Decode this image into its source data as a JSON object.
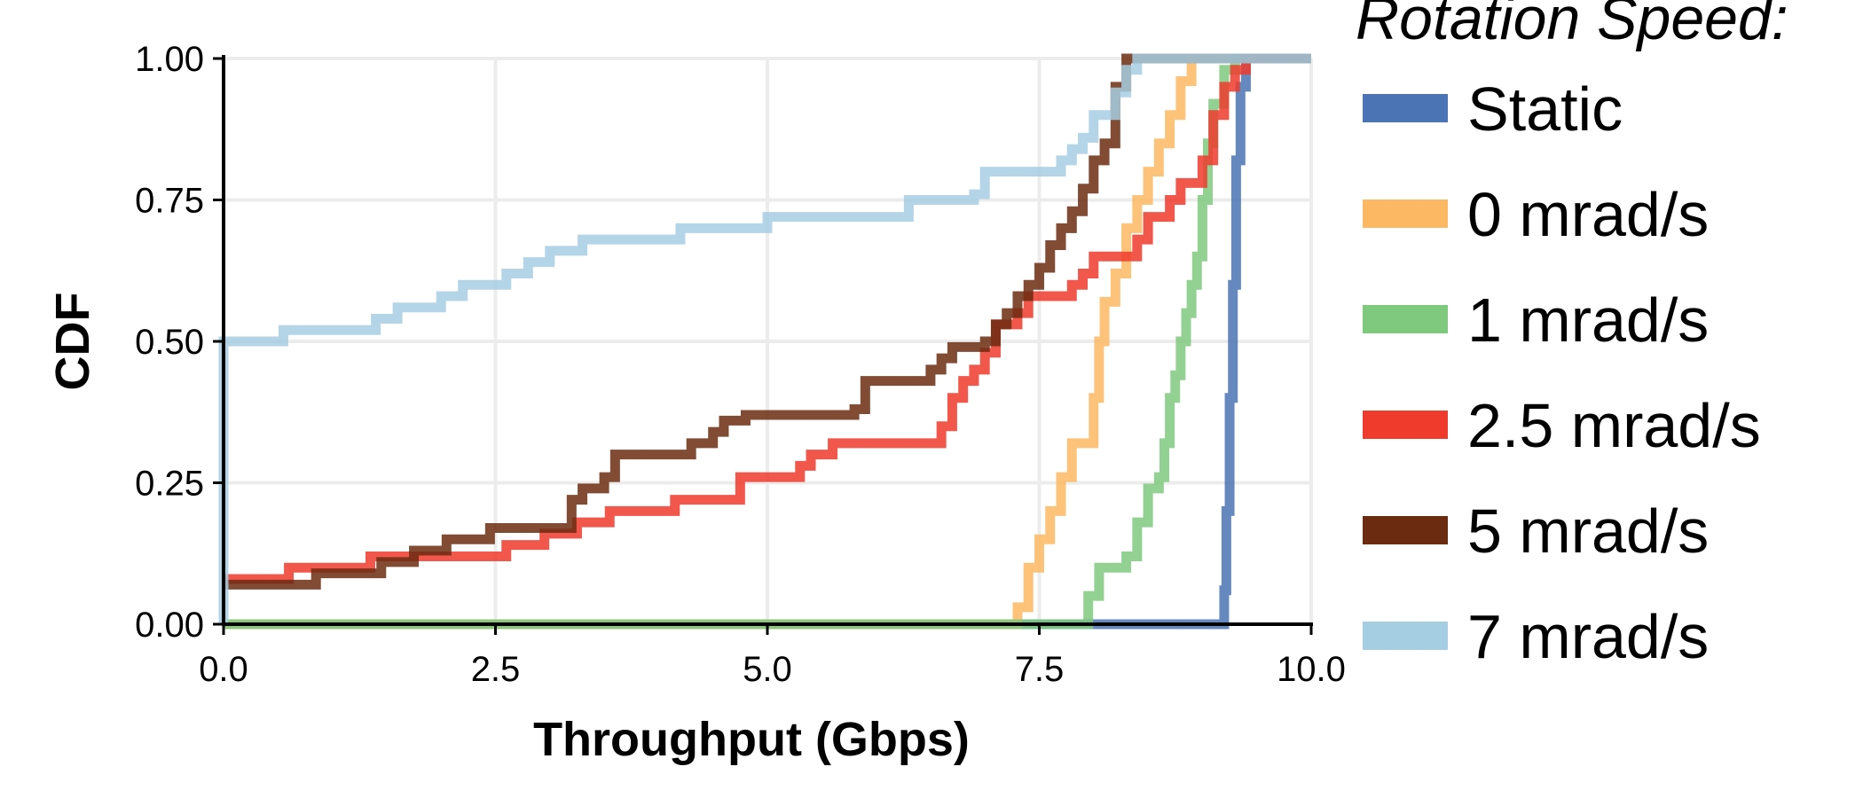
{
  "chart_data": {
    "type": "line",
    "xlabel": "Throughput (Gbps)",
    "ylabel": "CDF",
    "xlim": [
      0,
      10
    ],
    "ylim": [
      0,
      1
    ],
    "x_ticks": [
      "0.0",
      "2.5",
      "5.0",
      "7.5",
      "10.0"
    ],
    "y_ticks": [
      "0.00",
      "0.25",
      "0.50",
      "0.75",
      "1.00"
    ],
    "grid": true,
    "legend_title": "Rotation Speed:",
    "legend_position": "right",
    "series": [
      {
        "name": "Static",
        "color": "#4a74b4",
        "points": [
          [
            0,
            0
          ],
          [
            9.15,
            0
          ],
          [
            9.2,
            0.06
          ],
          [
            9.22,
            0.2
          ],
          [
            9.25,
            0.4
          ],
          [
            9.28,
            0.6
          ],
          [
            9.31,
            0.82
          ],
          [
            9.35,
            0.95
          ],
          [
            9.4,
            1
          ],
          [
            10,
            1
          ]
        ]
      },
      {
        "name": "0 mrad/s",
        "color": "#fdb863",
        "points": [
          [
            0,
            0
          ],
          [
            7.2,
            0
          ],
          [
            7.3,
            0.03
          ],
          [
            7.4,
            0.1
          ],
          [
            7.5,
            0.15
          ],
          [
            7.6,
            0.2
          ],
          [
            7.7,
            0.26
          ],
          [
            7.8,
            0.32
          ],
          [
            7.95,
            0.32
          ],
          [
            8.0,
            0.4
          ],
          [
            8.05,
            0.5
          ],
          [
            8.1,
            0.57
          ],
          [
            8.2,
            0.62
          ],
          [
            8.3,
            0.7
          ],
          [
            8.4,
            0.75
          ],
          [
            8.5,
            0.8
          ],
          [
            8.6,
            0.85
          ],
          [
            8.7,
            0.9
          ],
          [
            8.8,
            0.96
          ],
          [
            8.9,
            1
          ],
          [
            10,
            1
          ]
        ]
      },
      {
        "name": "1 mrad/s",
        "color": "#7fc97f",
        "points": [
          [
            0,
            0
          ],
          [
            7.85,
            0
          ],
          [
            7.95,
            0.05
          ],
          [
            8.05,
            0.1
          ],
          [
            8.3,
            0.12
          ],
          [
            8.4,
            0.18
          ],
          [
            8.5,
            0.24
          ],
          [
            8.6,
            0.26
          ],
          [
            8.65,
            0.32
          ],
          [
            8.7,
            0.4
          ],
          [
            8.75,
            0.44
          ],
          [
            8.8,
            0.5
          ],
          [
            8.85,
            0.55
          ],
          [
            8.9,
            0.6
          ],
          [
            8.95,
            0.65
          ],
          [
            9.0,
            0.75
          ],
          [
            9.05,
            0.85
          ],
          [
            9.1,
            0.92
          ],
          [
            9.2,
            0.98
          ],
          [
            9.3,
            1
          ],
          [
            10,
            1
          ]
        ]
      },
      {
        "name": "2.5 mrad/s",
        "color": "#ef3b2c",
        "points": [
          [
            0,
            0.08
          ],
          [
            0.5,
            0.08
          ],
          [
            0.6,
            0.1
          ],
          [
            1.3,
            0.1
          ],
          [
            1.35,
            0.12
          ],
          [
            2.5,
            0.12
          ],
          [
            2.6,
            0.14
          ],
          [
            2.9,
            0.14
          ],
          [
            2.95,
            0.16
          ],
          [
            3.2,
            0.16
          ],
          [
            3.25,
            0.18
          ],
          [
            3.5,
            0.18
          ],
          [
            3.55,
            0.2
          ],
          [
            4.1,
            0.2
          ],
          [
            4.15,
            0.22
          ],
          [
            4.7,
            0.22
          ],
          [
            4.75,
            0.26
          ],
          [
            5.3,
            0.28
          ],
          [
            5.4,
            0.3
          ],
          [
            5.6,
            0.32
          ],
          [
            6.5,
            0.32
          ],
          [
            6.6,
            0.35
          ],
          [
            6.7,
            0.4
          ],
          [
            6.8,
            0.43
          ],
          [
            6.9,
            0.45
          ],
          [
            7.0,
            0.48
          ],
          [
            7.1,
            0.53
          ],
          [
            7.3,
            0.55
          ],
          [
            7.4,
            0.58
          ],
          [
            7.8,
            0.6
          ],
          [
            7.9,
            0.62
          ],
          [
            8.0,
            0.65
          ],
          [
            8.4,
            0.68
          ],
          [
            8.5,
            0.72
          ],
          [
            8.7,
            0.75
          ],
          [
            8.8,
            0.78
          ],
          [
            9.0,
            0.82
          ],
          [
            9.1,
            0.9
          ],
          [
            9.2,
            0.95
          ],
          [
            9.3,
            0.98
          ],
          [
            9.4,
            1
          ],
          [
            10,
            1
          ]
        ]
      },
      {
        "name": "5 mrad/s",
        "color": "#6b2b10",
        "points": [
          [
            0,
            0.07
          ],
          [
            0.8,
            0.07
          ],
          [
            0.85,
            0.09
          ],
          [
            1.4,
            0.09
          ],
          [
            1.45,
            0.11
          ],
          [
            1.7,
            0.11
          ],
          [
            1.75,
            0.13
          ],
          [
            2.0,
            0.13
          ],
          [
            2.05,
            0.15
          ],
          [
            2.4,
            0.15
          ],
          [
            2.45,
            0.17
          ],
          [
            3.1,
            0.17
          ],
          [
            3.2,
            0.22
          ],
          [
            3.3,
            0.24
          ],
          [
            3.5,
            0.26
          ],
          [
            3.6,
            0.3
          ],
          [
            4.2,
            0.3
          ],
          [
            4.3,
            0.32
          ],
          [
            4.5,
            0.34
          ],
          [
            4.6,
            0.36
          ],
          [
            4.8,
            0.37
          ],
          [
            5.8,
            0.38
          ],
          [
            5.9,
            0.43
          ],
          [
            6.5,
            0.45
          ],
          [
            6.6,
            0.47
          ],
          [
            6.7,
            0.49
          ],
          [
            7.0,
            0.5
          ],
          [
            7.1,
            0.53
          ],
          [
            7.2,
            0.55
          ],
          [
            7.3,
            0.58
          ],
          [
            7.4,
            0.6
          ],
          [
            7.5,
            0.63
          ],
          [
            7.6,
            0.67
          ],
          [
            7.7,
            0.7
          ],
          [
            7.8,
            0.73
          ],
          [
            7.9,
            0.77
          ],
          [
            8.0,
            0.82
          ],
          [
            8.1,
            0.85
          ],
          [
            8.2,
            0.95
          ],
          [
            8.3,
            1
          ],
          [
            10,
            1
          ]
        ]
      },
      {
        "name": "7 mrad/s",
        "color": "#a6cee3",
        "points": [
          [
            0,
            0
          ],
          [
            0,
            0.5
          ],
          [
            0.5,
            0.5
          ],
          [
            0.55,
            0.52
          ],
          [
            1.3,
            0.52
          ],
          [
            1.4,
            0.54
          ],
          [
            1.6,
            0.56
          ],
          [
            2.0,
            0.58
          ],
          [
            2.2,
            0.6
          ],
          [
            2.5,
            0.6
          ],
          [
            2.6,
            0.62
          ],
          [
            2.8,
            0.64
          ],
          [
            3.0,
            0.66
          ],
          [
            3.3,
            0.68
          ],
          [
            4.1,
            0.68
          ],
          [
            4.2,
            0.7
          ],
          [
            4.9,
            0.7
          ],
          [
            5.0,
            0.72
          ],
          [
            6.2,
            0.72
          ],
          [
            6.3,
            0.75
          ],
          [
            6.9,
            0.76
          ],
          [
            7.0,
            0.8
          ],
          [
            7.7,
            0.82
          ],
          [
            7.8,
            0.84
          ],
          [
            7.9,
            0.86
          ],
          [
            8.0,
            0.9
          ],
          [
            8.2,
            0.94
          ],
          [
            8.3,
            0.98
          ],
          [
            8.4,
            1
          ],
          [
            10,
            1
          ]
        ]
      }
    ]
  }
}
